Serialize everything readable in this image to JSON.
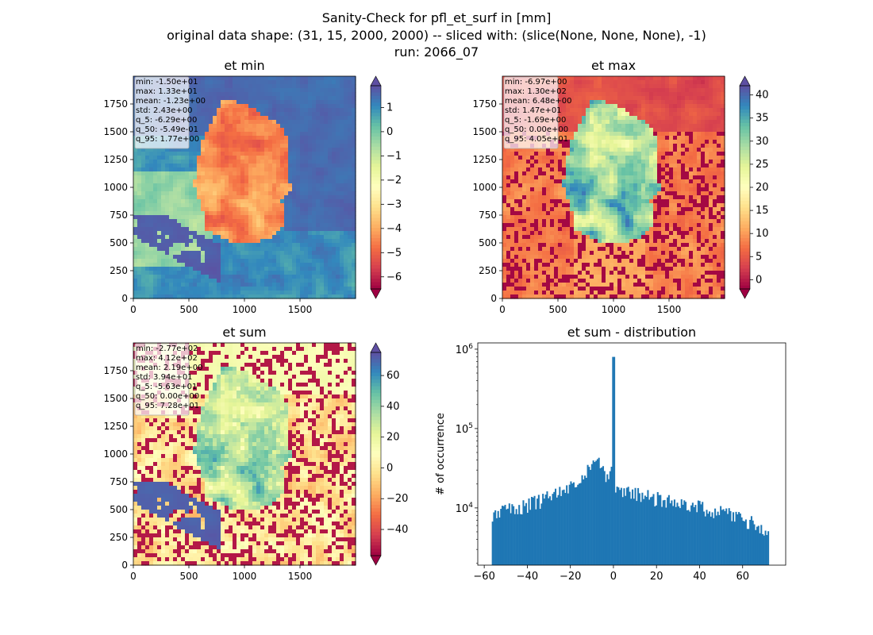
{
  "suptitle": {
    "line1": "Sanity-Check for pfl_et_surf in [mm]",
    "line2": "original data shape: (31, 15, 2000, 2000) -- sliced with: (slice(None, None, None), -1)",
    "line3": "run: 2066_07"
  },
  "chart_data": [
    {
      "type": "heatmap",
      "title": "et min",
      "xticks": [
        0,
        500,
        1000,
        1500
      ],
      "yticks": [
        0,
        250,
        500,
        750,
        1000,
        1250,
        1500,
        1750
      ],
      "xlim": [
        0,
        2000
      ],
      "ylim": [
        0,
        2000
      ],
      "colormap": "Spectral",
      "colorbar": {
        "range": [
          -6.5,
          1.9
        ],
        "ticks": [
          1,
          0,
          -1,
          -2,
          -3,
          -4,
          -5,
          -6
        ],
        "tick_labels": [
          "1",
          "0",
          "−1",
          "−2",
          "−3",
          "−4",
          "−5",
          "−6"
        ],
        "extend": "both"
      },
      "stats": [
        "min: -1.50e+01",
        "max: 1.33e+01",
        "mean: -1.23e+00",
        "std: 2.43e+00",
        "q_5: -6.29e+00",
        "q_50: -5.49e-01",
        "q_95: 1.77e+00"
      ]
    },
    {
      "type": "heatmap",
      "title": "et max",
      "xticks": [
        0,
        500,
        1000,
        1500
      ],
      "yticks": [
        0,
        250,
        500,
        750,
        1000,
        1250,
        1500,
        1750
      ],
      "xlim": [
        0,
        2000
      ],
      "ylim": [
        0,
        2000
      ],
      "colormap": "Spectral",
      "colorbar": {
        "range": [
          -2,
          42
        ],
        "ticks": [
          40,
          35,
          30,
          25,
          20,
          15,
          10,
          5,
          0
        ],
        "tick_labels": [
          "40",
          "35",
          "30",
          "25",
          "20",
          "15",
          "10",
          "5",
          "0"
        ],
        "extend": "both"
      },
      "stats": [
        "min: -6.97e+00",
        "max: 1.30e+02",
        "mean: 6.48e+00",
        "std: 1.47e+01",
        "q_5: -1.69e+00",
        "q_50: 0.00e+00",
        "q_95: 4.05e+01"
      ]
    },
    {
      "type": "heatmap",
      "title": "et sum",
      "xticks": [
        0,
        500,
        1000,
        1500
      ],
      "yticks": [
        0,
        250,
        500,
        750,
        1000,
        1250,
        1500,
        1750
      ],
      "xlim": [
        0,
        2000
      ],
      "ylim": [
        0,
        2000
      ],
      "colormap": "Spectral",
      "colorbar": {
        "range": [
          -57,
          75
        ],
        "ticks": [
          60,
          40,
          20,
          0,
          -20,
          -40
        ],
        "tick_labels": [
          "60",
          "40",
          "20",
          "0",
          "−20",
          "−40"
        ],
        "extend": "both"
      },
      "stats": [
        "min: -2.77e+02",
        "max: 4.12e+02",
        "mean: 2.19e+00",
        "std: 3.94e+01",
        "q_5: -5.63e+01",
        "q_50: 0.00e+00",
        "q_95: 7.28e+01"
      ]
    },
    {
      "type": "bar",
      "title": "et sum - distribution",
      "ylabel": "# of occurrence",
      "xlabel": "",
      "yscale": "log",
      "xlim": [
        -63,
        80
      ],
      "ylim": [
        1900,
        1200000
      ],
      "xticks": [
        -60,
        -40,
        -20,
        0,
        20,
        40,
        60
      ],
      "xtick_labels": [
        "−60",
        "−40",
        "−20",
        "0",
        "20",
        "40",
        "60"
      ],
      "yticks": [
        10000,
        100000,
        1000000
      ],
      "ytick_labels": [
        "10^4",
        "10^5",
        "10^6"
      ],
      "bin_width": 0.65,
      "color": "#1f77b4",
      "anchors": [
        [
          -56.5,
          8200
        ],
        [
          -50,
          9500
        ],
        [
          -40,
          11000
        ],
        [
          -30,
          13500
        ],
        [
          -22,
          16500
        ],
        [
          -15,
          22000
        ],
        [
          -10,
          34000
        ],
        [
          -7,
          40000
        ],
        [
          -4,
          26000
        ],
        [
          -1.5,
          18000
        ],
        [
          1.5,
          17000
        ],
        [
          5,
          16000
        ],
        [
          15,
          14000
        ],
        [
          25,
          12500
        ],
        [
          35,
          11000
        ],
        [
          45,
          9500
        ],
        [
          55,
          8200
        ],
        [
          65,
          6500
        ],
        [
          72,
          4500
        ]
      ],
      "spikes": [
        {
          "x": 0,
          "y": 800000
        },
        {
          "x": -1.5,
          "y": 29000
        },
        {
          "x": -1.0,
          "y": 33000
        },
        {
          "x": -2.2,
          "y": 23000
        }
      ]
    }
  ]
}
